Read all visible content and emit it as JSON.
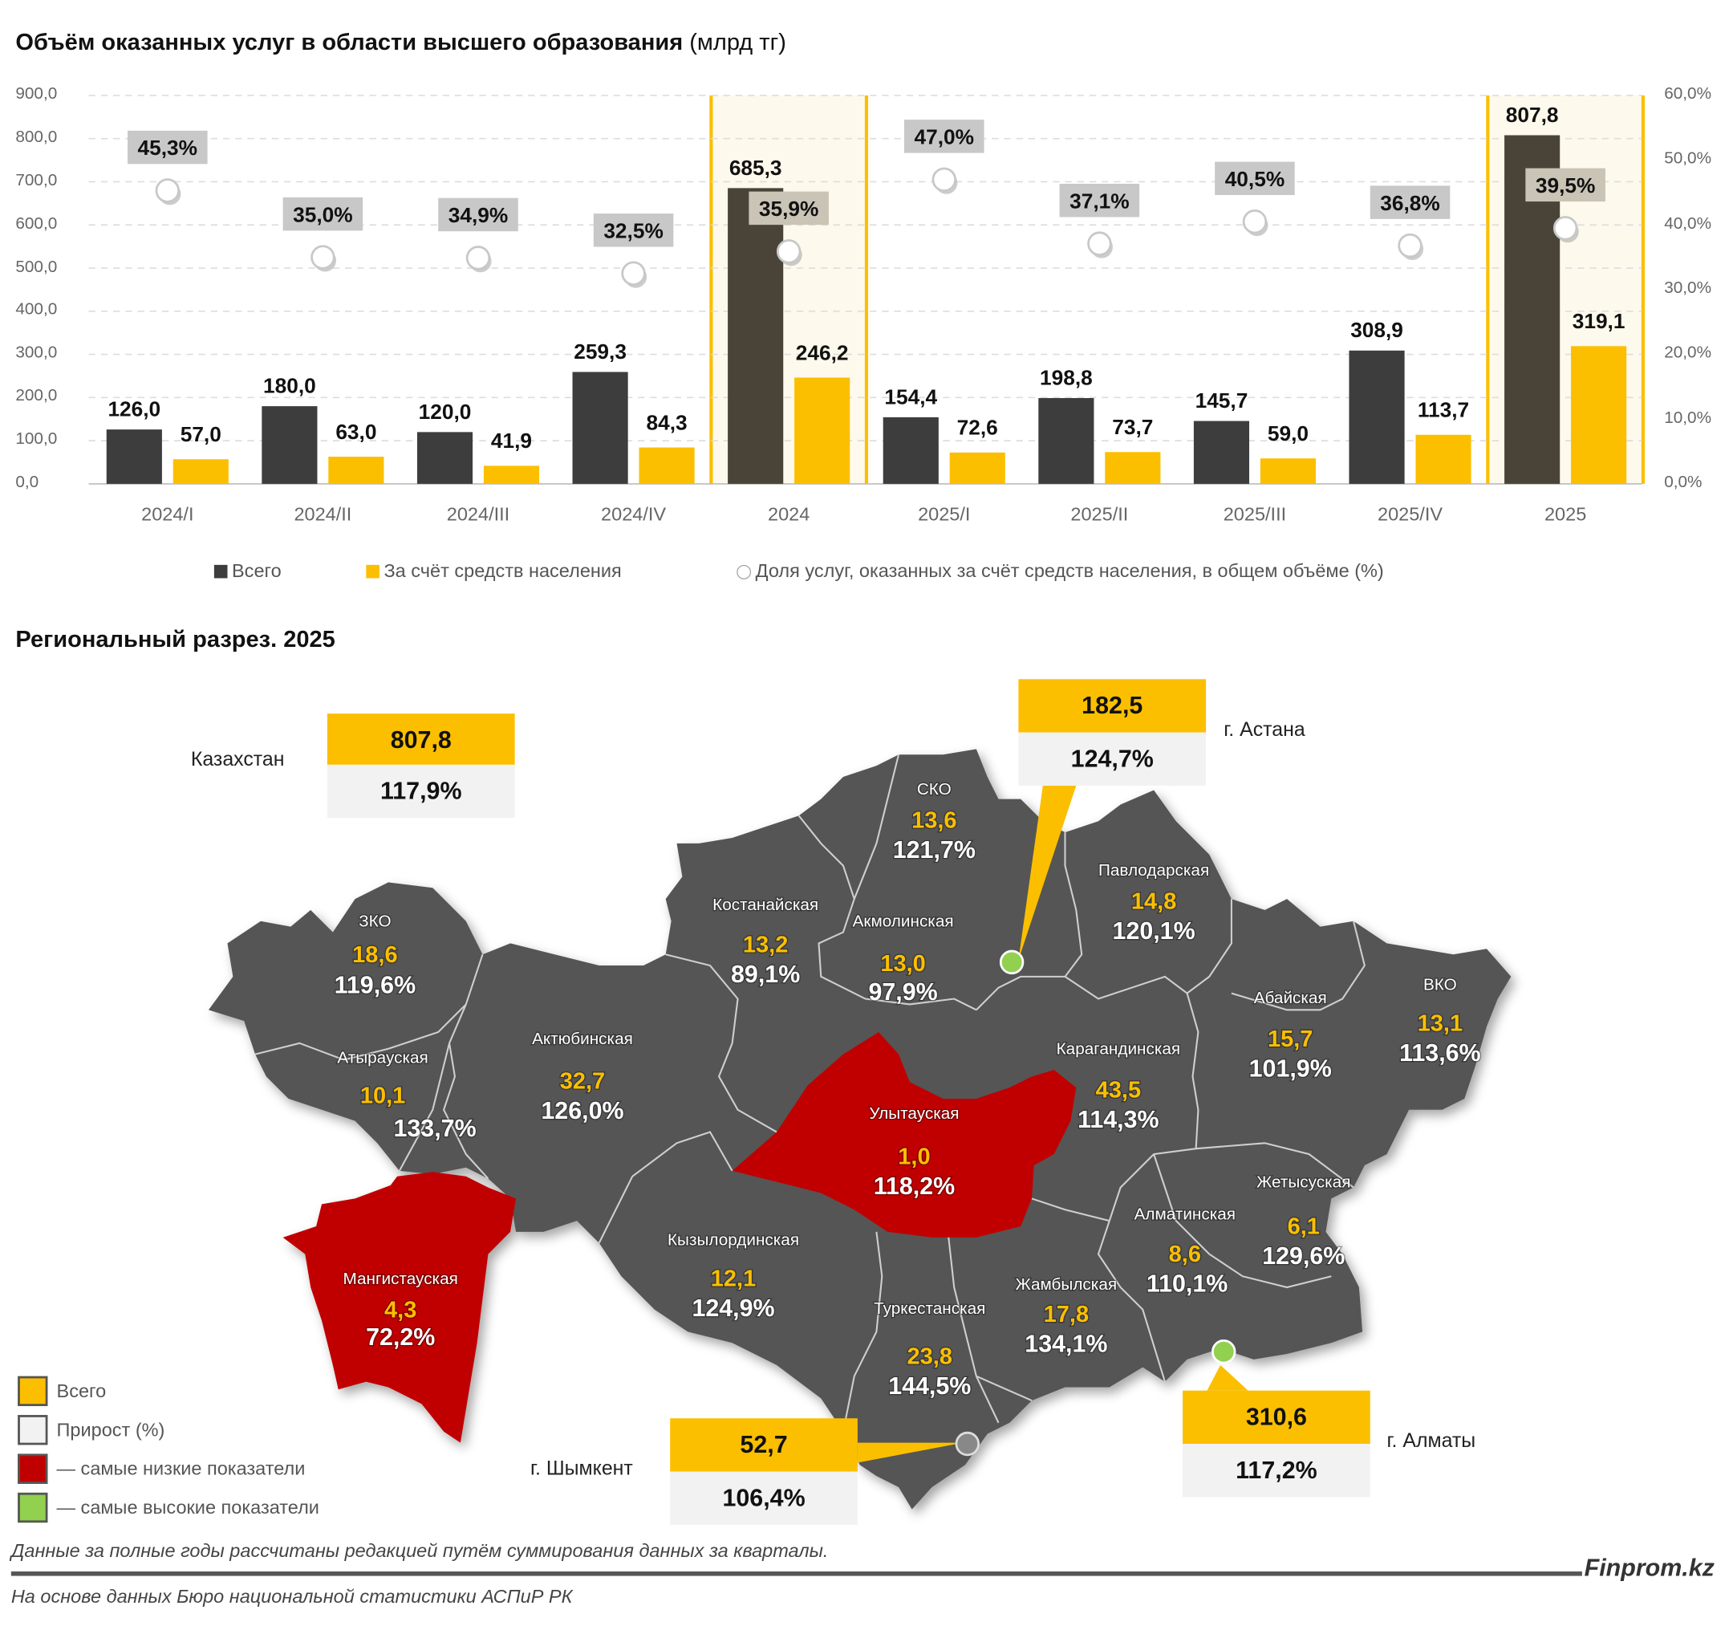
{
  "title": "Объём оказанных услуг в области высшего образования",
  "title_unit": "(млрд тг)",
  "chart_data": {
    "type": "bar",
    "title": "Объём оказанных услуг в области высшего образования (млрд тг)",
    "categories": [
      "2024/I",
      "2024/II",
      "2024/III",
      "2024/IV",
      "2024",
      "2025/I",
      "2025/II",
      "2025/III",
      "2025/IV",
      "2025"
    ],
    "series": [
      {
        "name": "Всего",
        "type": "bar",
        "axis": "left",
        "color": "#3d3d3d",
        "values": [
          126.0,
          180.0,
          120.0,
          259.3,
          685.3,
          154.4,
          198.8,
          145.7,
          308.9,
          807.8
        ],
        "labels": [
          "126,0",
          "180,0",
          "120,0",
          "259,3",
          "685,3",
          "154,4",
          "198,8",
          "145,7",
          "308,9",
          "807,8"
        ]
      },
      {
        "name": "За счёт средств населения",
        "type": "bar",
        "axis": "left",
        "color": "#fbbf00",
        "values": [
          57.0,
          63.0,
          41.9,
          84.3,
          246.2,
          72.6,
          73.7,
          59.0,
          113.7,
          319.1
        ],
        "labels": [
          "57,0",
          "63,0",
          "41,9",
          "84,3",
          "246,2",
          "72,6",
          "73,7",
          "59,0",
          "113,7",
          "319,1"
        ]
      },
      {
        "name": "Доля услуг, оказанных за счёт средств населения, в общем объёме (%)",
        "type": "scatter",
        "axis": "right",
        "values": [
          45.3,
          35.0,
          34.9,
          32.5,
          35.9,
          47.0,
          37.1,
          40.5,
          36.8,
          39.5
        ],
        "labels": [
          "45,3%",
          "35,0%",
          "34,9%",
          "32,5%",
          "35,9%",
          "47,0%",
          "37,1%",
          "40,5%",
          "36,8%",
          "39,5%"
        ]
      }
    ],
    "highlighted_categories": [
      "2024",
      "2025"
    ],
    "ylim": [
      0,
      900
    ],
    "y2lim": [
      0,
      60
    ],
    "yticks": [
      "0,0",
      "100,0",
      "200,0",
      "300,0",
      "400,0",
      "500,0",
      "600,0",
      "700,0",
      "800,0",
      "900,0"
    ],
    "y2ticks": [
      "0,0%",
      "10,0%",
      "20,0%",
      "30,0%",
      "40,0%",
      "50,0%",
      "60,0%"
    ],
    "grid": true,
    "legend": "bottom"
  },
  "legend": {
    "total": "Всего",
    "population": "За счёт средств населения",
    "share": "Доля услуг, оказанных за счёт средств населения, в общем объёме (%)"
  },
  "map": {
    "title": "Региональный разрез. 2025",
    "colors": {
      "gray": "#555555",
      "low": "#c00000",
      "high": "#92d050",
      "accent": "#fbbf00"
    },
    "regions": [
      {
        "id": "sko",
        "name": "СКО",
        "value": "13,6",
        "growth": "121,7%"
      },
      {
        "id": "zko",
        "name": "ЗКО",
        "value": "18,6",
        "growth": "119,6%"
      },
      {
        "id": "kostanay",
        "name": "Костанайская",
        "value": "13,2",
        "growth": "89,1%"
      },
      {
        "id": "akmola",
        "name": "Акмолинская",
        "value": "13,0",
        "growth": "97,9%"
      },
      {
        "id": "pavlodar",
        "name": "Павлодарская",
        "value": "14,8",
        "growth": "120,1%"
      },
      {
        "id": "aktobe",
        "name": "Актюбинская",
        "value": "32,7",
        "growth": "126,0%"
      },
      {
        "id": "atyrau",
        "name": "Атырауская",
        "value": "10,1",
        "growth": "133,7%"
      },
      {
        "id": "karaganda",
        "name": "Карагандинская",
        "value": "43,5",
        "growth": "114,3%"
      },
      {
        "id": "abay",
        "name": "Абайская",
        "value": "15,7",
        "growth": "101,9%"
      },
      {
        "id": "vko",
        "name": "ВКО",
        "value": "13,1",
        "growth": "113,6%"
      },
      {
        "id": "ulytau",
        "name": "Улытауская",
        "value": "1,0",
        "growth": "118,2%",
        "status": "low"
      },
      {
        "id": "zhetysu",
        "name": "Жетысуская",
        "value": "6,1",
        "growth": "129,6%"
      },
      {
        "id": "almaty_obl",
        "name": "Алматинская",
        "value": "8,6",
        "growth": "110,1%"
      },
      {
        "id": "kyzylorda",
        "name": "Кызылординская",
        "value": "12,1",
        "growth": "124,9%"
      },
      {
        "id": "zhambyl",
        "name": "Жамбылская",
        "value": "17,8",
        "growth": "134,1%"
      },
      {
        "id": "turkestan",
        "name": "Туркестанская",
        "value": "23,8",
        "growth": "144,5%"
      },
      {
        "id": "mangistau",
        "name": "Мангистауская",
        "value": "4,3",
        "growth": "72,2%",
        "status": "low"
      }
    ],
    "callouts": {
      "kazakhstan": {
        "name": "Казахстан",
        "value": "807,8",
        "growth": "117,9%"
      },
      "astana": {
        "name": "г. Астана",
        "value": "182,5",
        "growth": "124,7%",
        "status": "high"
      },
      "shymkent": {
        "name": "г. Шымкент",
        "value": "52,7",
        "growth": "106,4%"
      },
      "almaty": {
        "name": "г. Алматы",
        "value": "310,6",
        "growth": "117,2%",
        "status": "high"
      }
    },
    "legend": [
      {
        "label": "Всего",
        "color": "#fbbf00"
      },
      {
        "label": "Прирост (%)",
        "color": "#f2f2f2"
      },
      {
        "label": "— самые низкие показатели",
        "color": "#c00000"
      },
      {
        "label": "— самые высокие показатели",
        "color": "#92d050"
      }
    ]
  },
  "footer": {
    "note": "Данные за полные годы рассчитаны редакцией путём суммирования данных за кварталы.",
    "brand": "Finprom.kz",
    "source": "На основе данных Бюро национальной статистики АСПиР РК"
  }
}
